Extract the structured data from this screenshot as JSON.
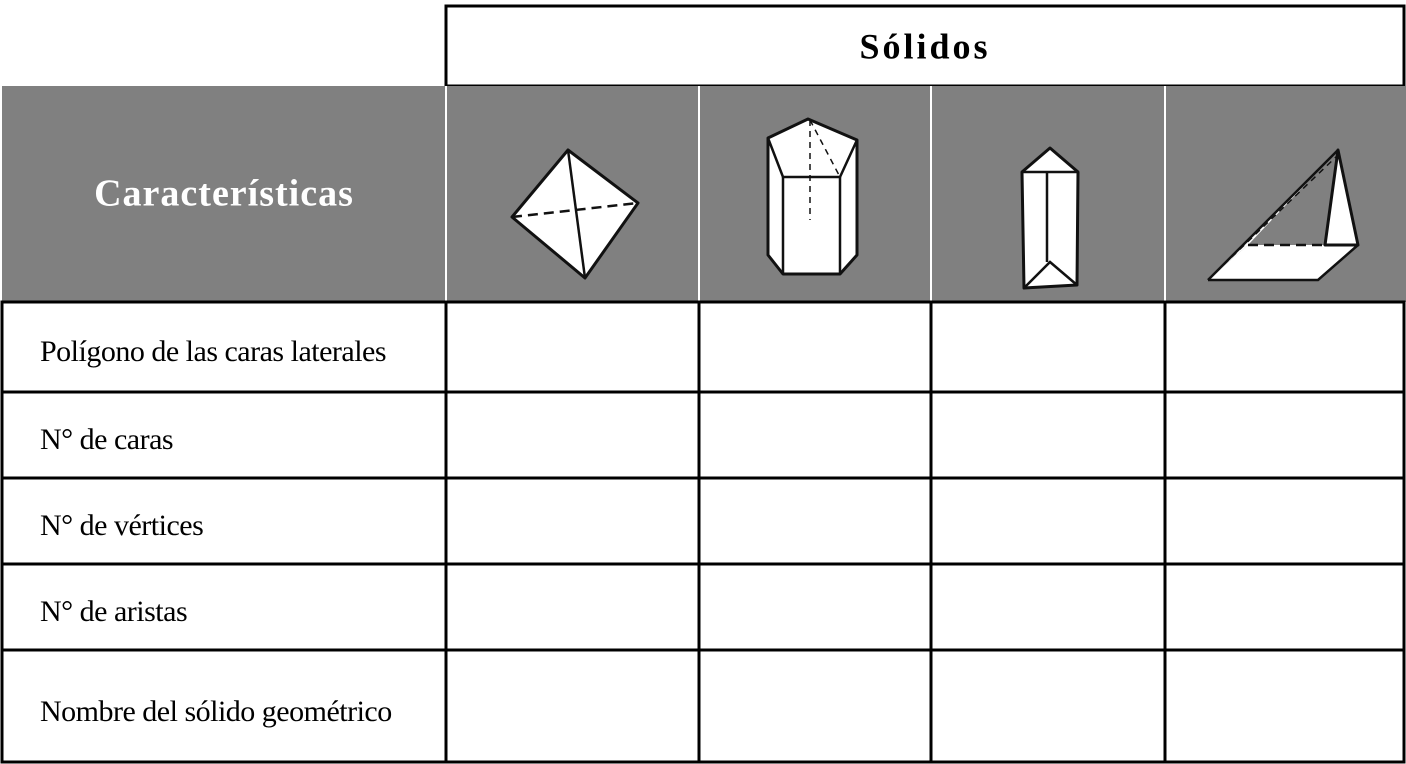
{
  "header": {
    "title": "Sólidos"
  },
  "table": {
    "corner": "Características",
    "rows": [
      "Polígono de las caras laterales",
      "N° de caras",
      "N° de vértices",
      "N° de aristas",
      "Nombre del sólido geométrico"
    ]
  }
}
